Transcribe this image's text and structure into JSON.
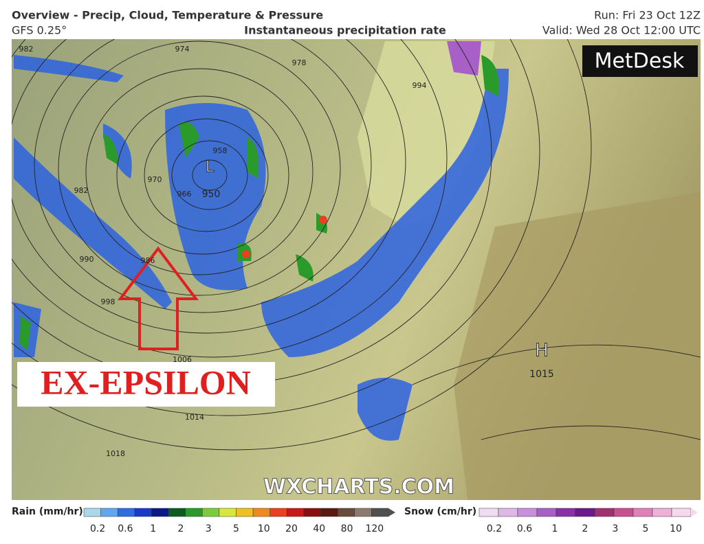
{
  "header": {
    "title": "Overview - Precip, Cloud, Temperature & Pressure",
    "model": "GFS 0.25°",
    "subtitle": "Instantaneous precipitation rate",
    "run": "Run: Fri 23 Oct 12Z",
    "valid": "Valid: Wed 28 Oct 12:00 UTC"
  },
  "logo": "MetDesk",
  "annotation": "EX-EPSILON",
  "watermark": "WXCHARTS.COM",
  "low": {
    "label": "L",
    "pressure": "950"
  },
  "high": {
    "label": "H",
    "pressure": "1015"
  },
  "isobar_labels": [
    "982",
    "974",
    "978",
    "994",
    "982",
    "970",
    "966",
    "958",
    "990",
    "986",
    "998",
    "1006",
    "1014",
    "1018"
  ],
  "rain_legend": {
    "title": "Rain (mm/hr)",
    "ticks": [
      "0.2",
      "0.6",
      "1",
      "2",
      "3",
      "5",
      "10",
      "20",
      "40",
      "80",
      "120"
    ],
    "colors": [
      "#a8d8ea",
      "#5fa8f0",
      "#2f6de0",
      "#1a3bc8",
      "#0a1a8a",
      "#0b5c1e",
      "#2a9a2a",
      "#7ccc3a",
      "#d8e83a",
      "#f0c020",
      "#f08a20",
      "#e84020",
      "#c81818",
      "#8a1010",
      "#5a1a10",
      "#6a4a3a",
      "#8a7a70",
      "#505050"
    ]
  },
  "snow_legend": {
    "title": "Snow (cm/hr)",
    "ticks": [
      "0.2",
      "0.6",
      "1",
      "2",
      "3",
      "5",
      "10"
    ],
    "colors": [
      "#f0dcf0",
      "#e0b8e8",
      "#c890dc",
      "#a860c8",
      "#8a30a8",
      "#6a1a8a",
      "#a03070",
      "#c85090",
      "#e080b8",
      "#f0b0d8",
      "#f8d8ec"
    ]
  }
}
